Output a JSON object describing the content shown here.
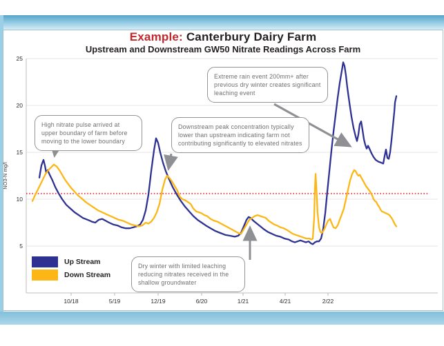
{
  "header": {
    "title_prefix": "Example:",
    "title_main": " Canterbury Dairy Farm",
    "subtitle": "Upstream and Downstream GW50 Nitrate Readings Across Farm",
    "title_prefix_color": "#c1272d"
  },
  "annotations": [
    {
      "id": "high-nitrate-pulse",
      "text": "High nitrate pulse arrived at upper boundary of farm before moving to the lower boundary"
    },
    {
      "id": "extreme-rain",
      "text": "Extreme rain event 200mm+ after previous dry winter creates significant leaching event"
    },
    {
      "id": "downstream-peak",
      "text": "Downstream peak concentration typically lower than upstream indicating farm not contributing significantly to elevated nitrates"
    },
    {
      "id": "dry-winter",
      "text": "Dry winter with limited leaching reducing nitrates received in the shallow groundwater"
    }
  ],
  "chart_data": {
    "type": "line",
    "title": "Example: Canterbury Dairy Farm",
    "subtitle": "Upstream and Downstream GW50 Nitrate Readings Across Farm",
    "ylabel": "NO3-N mg/l",
    "ylim": [
      0,
      25
    ],
    "y_ticks": [
      5,
      10,
      15,
      20,
      25
    ],
    "x_length": 574,
    "x_ticks": [
      {
        "label": "10/18",
        "pos": 65
      },
      {
        "label": "5/19",
        "pos": 128
      },
      {
        "label": "12/19",
        "pos": 191
      },
      {
        "label": "6/20",
        "pos": 254
      },
      {
        "label": "1/21",
        "pos": 314
      },
      {
        "label": "4/21",
        "pos": 375
      },
      {
        "label": "2/22",
        "pos": 437
      }
    ],
    "grid": "horizontal",
    "legend_position": "bottom-left",
    "reference_line": {
      "value": 10.6,
      "color": "#e8393d",
      "style": "dotted"
    },
    "series": [
      {
        "name": "Up Stream",
        "color": "#2e3192",
        "points": [
          [
            19,
            12.3
          ],
          [
            22,
            13.6
          ],
          [
            25,
            14.2
          ],
          [
            27,
            13.6
          ],
          [
            29,
            12.8
          ],
          [
            31,
            13.1
          ],
          [
            34,
            12.6
          ],
          [
            38,
            12.0
          ],
          [
            42,
            11.3
          ],
          [
            47,
            10.6
          ],
          [
            52,
            10.0
          ],
          [
            58,
            9.4
          ],
          [
            64,
            9.0
          ],
          [
            70,
            8.6
          ],
          [
            76,
            8.3
          ],
          [
            82,
            8.0
          ],
          [
            89,
            7.8
          ],
          [
            95,
            7.6
          ],
          [
            100,
            7.5
          ],
          [
            105,
            7.8
          ],
          [
            110,
            7.9
          ],
          [
            115,
            7.7
          ],
          [
            120,
            7.5
          ],
          [
            126,
            7.3
          ],
          [
            132,
            7.2
          ],
          [
            138,
            7.0
          ],
          [
            144,
            6.9
          ],
          [
            150,
            6.9
          ],
          [
            155,
            7.0
          ],
          [
            160,
            7.1
          ],
          [
            165,
            7.3
          ],
          [
            169,
            7.8
          ],
          [
            173,
            8.8
          ],
          [
            177,
            10.5
          ],
          [
            181,
            13.0
          ],
          [
            185,
            15.2
          ],
          [
            188,
            16.5
          ],
          [
            191,
            16.0
          ],
          [
            194,
            15.0
          ],
          [
            198,
            13.9
          ],
          [
            202,
            13.0
          ],
          [
            207,
            12.1
          ],
          [
            212,
            11.3
          ],
          [
            218,
            10.5
          ],
          [
            224,
            9.8
          ],
          [
            230,
            9.2
          ],
          [
            236,
            8.7
          ],
          [
            242,
            8.2
          ],
          [
            248,
            7.8
          ],
          [
            254,
            7.5
          ],
          [
            260,
            7.2
          ],
          [
            267,
            6.9
          ],
          [
            274,
            6.6
          ],
          [
            281,
            6.4
          ],
          [
            288,
            6.2
          ],
          [
            295,
            6.1
          ],
          [
            302,
            6.0
          ],
          [
            307,
            6.1
          ],
          [
            311,
            6.4
          ],
          [
            315,
            7.1
          ],
          [
            319,
            7.8
          ],
          [
            322,
            8.1
          ],
          [
            325,
            8.0
          ],
          [
            329,
            7.7
          ],
          [
            334,
            7.4
          ],
          [
            339,
            7.1
          ],
          [
            344,
            6.8
          ],
          [
            350,
            6.5
          ],
          [
            356,
            6.3
          ],
          [
            362,
            6.1
          ],
          [
            368,
            6.0
          ],
          [
            374,
            5.8
          ],
          [
            380,
            5.7
          ],
          [
            385,
            5.5
          ],
          [
            389,
            5.4
          ],
          [
            393,
            5.5
          ],
          [
            397,
            5.6
          ],
          [
            401,
            5.5
          ],
          [
            405,
            5.4
          ],
          [
            409,
            5.5
          ],
          [
            412,
            5.3
          ],
          [
            415,
            5.2
          ],
          [
            418,
            5.4
          ],
          [
            421,
            5.5
          ],
          [
            424,
            5.5
          ],
          [
            427,
            5.8
          ],
          [
            430,
            6.8
          ],
          [
            433,
            8.5
          ],
          [
            436,
            10.8
          ],
          [
            439,
            13.0
          ],
          [
            442,
            15.2
          ],
          [
            445,
            17.2
          ],
          [
            448,
            19.0
          ],
          [
            451,
            20.8
          ],
          [
            454,
            22.4
          ],
          [
            457,
            23.7
          ],
          [
            459,
            24.6
          ],
          [
            461,
            24.2
          ],
          [
            463,
            23.2
          ],
          [
            465,
            21.9
          ],
          [
            468,
            20.3
          ],
          [
            471,
            18.8
          ],
          [
            474,
            17.6
          ],
          [
            477,
            16.7
          ],
          [
            479,
            16.2
          ],
          [
            481,
            16.9
          ],
          [
            483,
            18.0
          ],
          [
            485,
            18.3
          ],
          [
            487,
            17.4
          ],
          [
            489,
            16.4
          ],
          [
            491,
            15.8
          ],
          [
            493,
            15.4
          ],
          [
            495,
            15.7
          ],
          [
            497,
            15.4
          ],
          [
            500,
            14.9
          ],
          [
            503,
            14.5
          ],
          [
            506,
            14.2
          ],
          [
            510,
            14.0
          ],
          [
            514,
            13.9
          ],
          [
            517,
            13.8
          ],
          [
            519,
            14.6
          ],
          [
            521,
            15.3
          ],
          [
            523,
            14.4
          ],
          [
            525,
            14.3
          ],
          [
            527,
            15.0
          ],
          [
            529,
            16.3
          ],
          [
            531,
            17.8
          ],
          [
            533,
            19.3
          ],
          [
            534,
            20.3
          ],
          [
            536,
            21.0
          ]
        ]
      },
      {
        "name": "Down Stream",
        "color": "#fcb615",
        "points": [
          [
            9,
            9.8
          ],
          [
            12,
            10.3
          ],
          [
            16,
            10.9
          ],
          [
            20,
            11.5
          ],
          [
            24,
            12.1
          ],
          [
            28,
            12.7
          ],
          [
            32,
            13.1
          ],
          [
            36,
            13.4
          ],
          [
            40,
            13.7
          ],
          [
            44,
            13.5
          ],
          [
            48,
            13.1
          ],
          [
            52,
            12.6
          ],
          [
            56,
            12.1
          ],
          [
            60,
            11.7
          ],
          [
            65,
            11.2
          ],
          [
            70,
            10.8
          ],
          [
            75,
            10.4
          ],
          [
            80,
            10.1
          ],
          [
            86,
            9.7
          ],
          [
            92,
            9.4
          ],
          [
            98,
            9.1
          ],
          [
            104,
            8.8
          ],
          [
            110,
            8.6
          ],
          [
            116,
            8.4
          ],
          [
            122,
            8.2
          ],
          [
            128,
            8.0
          ],
          [
            134,
            7.8
          ],
          [
            140,
            7.7
          ],
          [
            146,
            7.5
          ],
          [
            152,
            7.3
          ],
          [
            158,
            7.2
          ],
          [
            163,
            7.1
          ],
          [
            168,
            7.2
          ],
          [
            173,
            7.5
          ],
          [
            177,
            7.4
          ],
          [
            181,
            7.6
          ],
          [
            185,
            8.0
          ],
          [
            189,
            8.6
          ],
          [
            193,
            9.5
          ],
          [
            197,
            11.0
          ],
          [
            201,
            12.1
          ],
          [
            204,
            12.5
          ],
          [
            207,
            12.3
          ],
          [
            211,
            11.9
          ],
          [
            215,
            11.4
          ],
          [
            219,
            10.9
          ],
          [
            222,
            10.3
          ],
          [
            226,
            10.0
          ],
          [
            230,
            9.9
          ],
          [
            234,
            9.7
          ],
          [
            238,
            9.5
          ],
          [
            242,
            9.0
          ],
          [
            246,
            8.7
          ],
          [
            250,
            8.6
          ],
          [
            254,
            8.5
          ],
          [
            258,
            8.3
          ],
          [
            262,
            8.2
          ],
          [
            267,
            7.9
          ],
          [
            272,
            7.7
          ],
          [
            277,
            7.6
          ],
          [
            282,
            7.4
          ],
          [
            287,
            7.2
          ],
          [
            292,
            7.0
          ],
          [
            297,
            6.8
          ],
          [
            302,
            6.6
          ],
          [
            307,
            6.4
          ],
          [
            311,
            6.3
          ],
          [
            315,
            6.8
          ],
          [
            319,
            7.3
          ],
          [
            323,
            7.8
          ],
          [
            327,
            8.0
          ],
          [
            331,
            8.2
          ],
          [
            335,
            8.3
          ],
          [
            339,
            8.2
          ],
          [
            343,
            8.1
          ],
          [
            347,
            8.0
          ],
          [
            351,
            7.7
          ],
          [
            355,
            7.5
          ],
          [
            359,
            7.3
          ],
          [
            363,
            7.2
          ],
          [
            368,
            7.0
          ],
          [
            373,
            6.9
          ],
          [
            378,
            6.7
          ],
          [
            382,
            6.5
          ],
          [
            386,
            6.3
          ],
          [
            390,
            6.2
          ],
          [
            394,
            6.1
          ],
          [
            398,
            6.0
          ],
          [
            402,
            5.9
          ],
          [
            406,
            5.8
          ],
          [
            410,
            5.8
          ],
          [
            413,
            5.7
          ],
          [
            415,
            5.8
          ],
          [
            417,
            8.0
          ],
          [
            418,
            11.0
          ],
          [
            419,
            12.7
          ],
          [
            420,
            11.5
          ],
          [
            422,
            8.5
          ],
          [
            424,
            7.0
          ],
          [
            426,
            6.5
          ],
          [
            428,
            6.4
          ],
          [
            431,
            6.7
          ],
          [
            434,
            7.2
          ],
          [
            437,
            7.7
          ],
          [
            440,
            7.9
          ],
          [
            442,
            7.5
          ],
          [
            445,
            7.0
          ],
          [
            448,
            6.9
          ],
          [
            451,
            7.2
          ],
          [
            454,
            7.8
          ],
          [
            457,
            8.4
          ],
          [
            460,
            9.0
          ],
          [
            463,
            10.0
          ],
          [
            466,
            11.0
          ],
          [
            469,
            12.0
          ],
          [
            472,
            12.7
          ],
          [
            475,
            13.1
          ],
          [
            477,
            13.0
          ],
          [
            479,
            12.7
          ],
          [
            481,
            12.5
          ],
          [
            483,
            12.6
          ],
          [
            486,
            12.2
          ],
          [
            489,
            11.8
          ],
          [
            492,
            11.4
          ],
          [
            495,
            11.1
          ],
          [
            498,
            10.8
          ],
          [
            501,
            10.4
          ],
          [
            503,
            10.0
          ],
          [
            505,
            9.8
          ],
          [
            507,
            9.7
          ],
          [
            509,
            9.4
          ],
          [
            511,
            9.2
          ],
          [
            513,
            8.9
          ],
          [
            515,
            8.7
          ],
          [
            518,
            8.6
          ],
          [
            521,
            8.5
          ],
          [
            524,
            8.4
          ],
          [
            526,
            8.3
          ],
          [
            528,
            8.1
          ],
          [
            530,
            7.9
          ],
          [
            532,
            7.6
          ],
          [
            534,
            7.3
          ],
          [
            536,
            7.1
          ]
        ]
      }
    ]
  }
}
